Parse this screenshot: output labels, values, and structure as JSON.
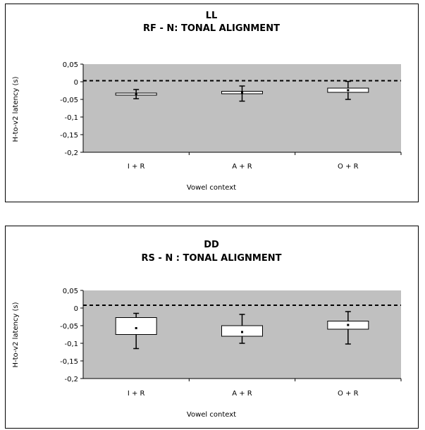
{
  "chart_data": [
    {
      "type": "boxplot",
      "title": "LL",
      "subtitle": "RF - N: TONAL ALIGNMENT",
      "xlabel": "Vowel context",
      "ylabel": "H-to-v2 latency (s)",
      "ylim": [
        -0.2,
        0.05
      ],
      "yticks": [
        "0,05",
        "0",
        "-0,05",
        "-0,1",
        "-0,15",
        "-0,2"
      ],
      "ytick_values": [
        0.05,
        0,
        -0.05,
        -0.1,
        -0.15,
        -0.2
      ],
      "reference_line": 0.003,
      "grid": false,
      "plot_background": "#c0c0c0",
      "categories": [
        "I + R",
        "A + R",
        "O + R"
      ],
      "boxes": [
        {
          "whisker_low": -0.048,
          "q1": -0.038,
          "mean": -0.035,
          "q3": -0.032,
          "whisker_high": -0.022
        },
        {
          "whisker_low": -0.055,
          "q1": -0.034,
          "mean": -0.031,
          "q3": -0.027,
          "whisker_high": -0.012
        },
        {
          "whisker_low": -0.05,
          "q1": -0.03,
          "mean": -0.024,
          "q3": -0.018,
          "whisker_high": 0.001
        }
      ]
    },
    {
      "type": "boxplot",
      "title": "DD",
      "subtitle": "RS - N : TONAL ALIGNMENT",
      "xlabel": "Vowel context",
      "ylabel": "H-to-v2 latency (s)",
      "ylim": [
        -0.2,
        0.05
      ],
      "yticks": [
        "0,05",
        "0",
        "-0,05",
        "-0,1",
        "-0,15",
        "-0,2"
      ],
      "ytick_values": [
        0.05,
        0,
        -0.05,
        -0.1,
        -0.15,
        -0.2
      ],
      "reference_line": 0.008,
      "grid": false,
      "plot_background": "#c0c0c0",
      "categories": [
        "I + R",
        "A + R",
        "O + R"
      ],
      "boxes": [
        {
          "whisker_low": -0.115,
          "q1": -0.075,
          "mean": -0.057,
          "q3": -0.027,
          "whisker_high": -0.015
        },
        {
          "whisker_low": -0.1,
          "q1": -0.08,
          "mean": -0.068,
          "q3": -0.05,
          "whisker_high": -0.018
        },
        {
          "whisker_low": -0.102,
          "q1": -0.06,
          "mean": -0.048,
          "q3": -0.037,
          "whisker_high": -0.01
        }
      ]
    }
  ]
}
